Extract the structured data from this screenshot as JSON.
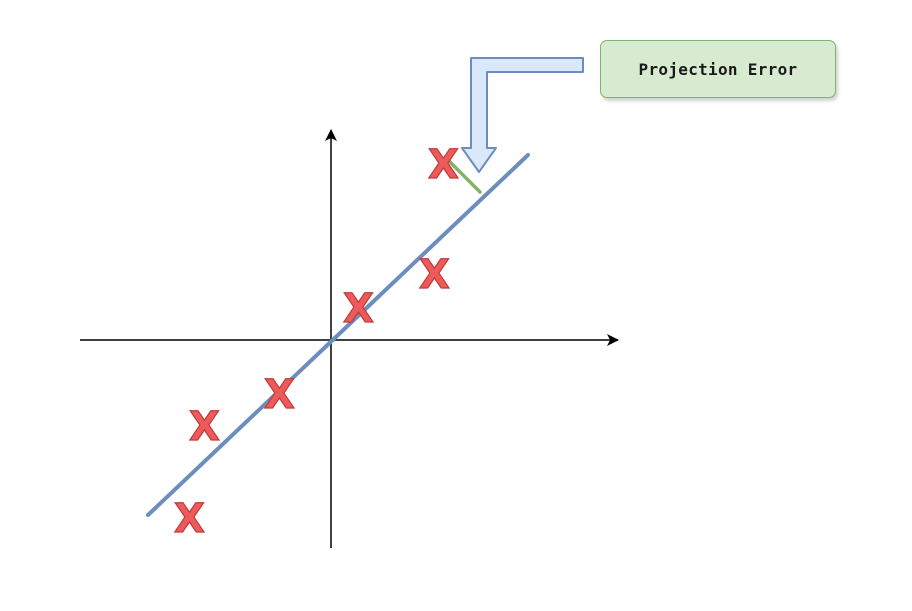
{
  "label": {
    "text": "Projection Error"
  },
  "marker_glyph": "X",
  "colors": {
    "marker_fill": "#ee5a5a",
    "marker_stroke": "#c03a3a",
    "fit_line": "#6c8ebf",
    "error_segment": "#82b366",
    "callout_fill": "#dae8fc",
    "callout_stroke": "#6c8ebf",
    "label_fill": "#d5e8d4",
    "label_border": "#82b366"
  },
  "icons": {
    "marker": "x-mark-icon",
    "callout": "bent-arrow-icon"
  }
}
